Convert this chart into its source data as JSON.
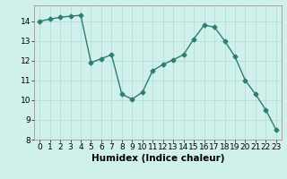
{
  "x": [
    0,
    1,
    2,
    3,
    4,
    5,
    6,
    7,
    8,
    9,
    10,
    11,
    12,
    13,
    14,
    15,
    16,
    17,
    18,
    19,
    20,
    21,
    22,
    23
  ],
  "y": [
    14.0,
    14.1,
    14.2,
    14.25,
    14.3,
    11.9,
    12.1,
    12.3,
    10.3,
    10.05,
    10.4,
    11.5,
    11.8,
    12.05,
    12.3,
    13.1,
    13.8,
    13.7,
    13.0,
    12.2,
    11.0,
    10.3,
    9.5,
    8.5
  ],
  "line_color": "#2e7d6e",
  "marker": "D",
  "markersize": 2.5,
  "linewidth": 1.0,
  "xlabel": "Humidex (Indice chaleur)",
  "ylim": [
    8,
    14.8
  ],
  "xlim": [
    -0.5,
    23.5
  ],
  "yticks": [
    8,
    9,
    10,
    11,
    12,
    13,
    14
  ],
  "xticks": [
    0,
    1,
    2,
    3,
    4,
    5,
    6,
    7,
    8,
    9,
    10,
    11,
    12,
    13,
    14,
    15,
    16,
    17,
    18,
    19,
    20,
    21,
    22,
    23
  ],
  "bg_color": "#cff0eb",
  "grid_color": "#b8ddd8",
  "tick_fontsize": 6.5,
  "xlabel_fontsize": 7.5
}
